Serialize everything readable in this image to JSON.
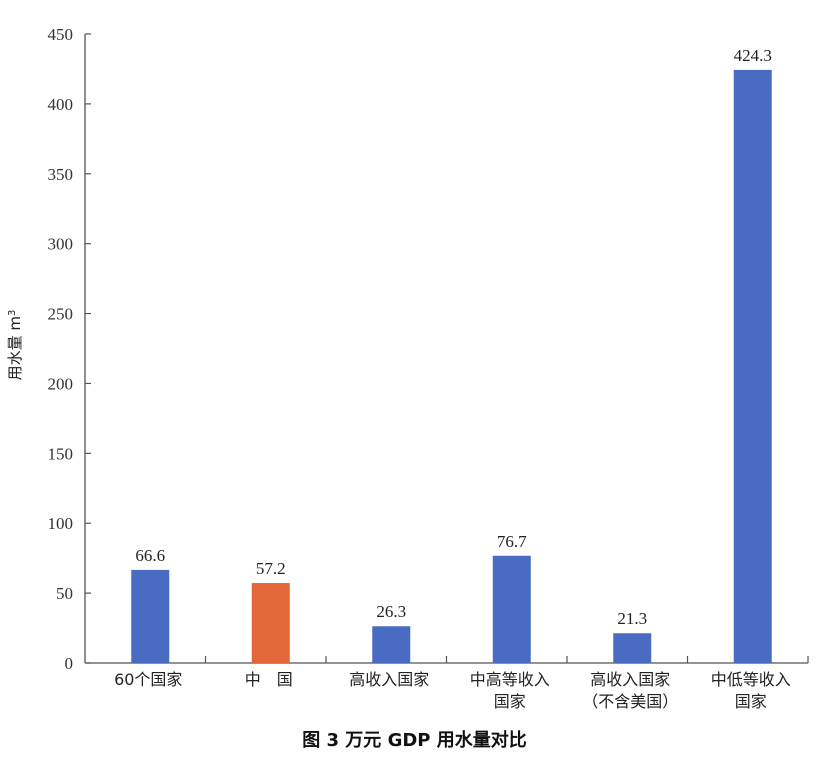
{
  "caption": "图 3    万元 GDP 用水量对比",
  "colors": {
    "default_bar": "#4A6BC2",
    "highlight_bar": "#E2683A",
    "axis": "#555555"
  },
  "chart_data": {
    "type": "bar",
    "title": "图 3 万元 GDP 用水量对比",
    "xlabel": "",
    "ylabel": "用水量 m³",
    "ylim": [
      0,
      450
    ],
    "yticks": [
      0,
      50,
      100,
      150,
      200,
      250,
      300,
      350,
      400,
      450
    ],
    "grid": false,
    "legend": null,
    "categories": [
      [
        "60个国家"
      ],
      [
        "中　国"
      ],
      [
        "高收入国家"
      ],
      [
        "中高等收入",
        "国家"
      ],
      [
        "高收入国家",
        "（不含美国）"
      ],
      [
        "中低等收入",
        "国家"
      ]
    ],
    "values": [
      66.6,
      57.2,
      26.3,
      76.7,
      21.3,
      424.3
    ],
    "value_labels": [
      "66.6",
      "57.2",
      "26.3",
      "76.7",
      "21.3",
      "424.3"
    ],
    "highlight_index": 1
  }
}
